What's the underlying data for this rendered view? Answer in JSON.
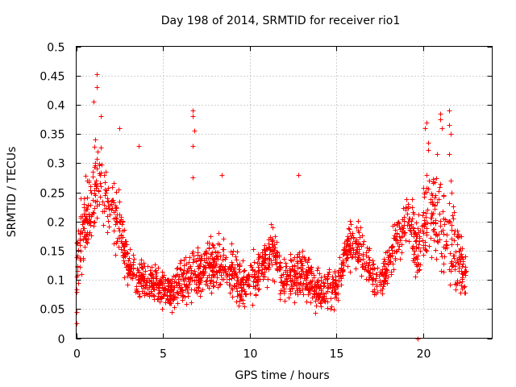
{
  "chart_data": {
    "type": "scatter",
    "title": "Day 198 of 2014, SRMTID for receiver rio1",
    "xlabel": "GPS time / hours",
    "ylabel": "SRMTID / TECUs",
    "xlim": [
      0,
      24
    ],
    "ylim": [
      0,
      0.5
    ],
    "x_ticks": [
      0,
      5,
      10,
      15,
      20
    ],
    "x_tick_labels": [
      "0",
      "5",
      "10",
      "15",
      "20"
    ],
    "y_ticks": [
      0,
      0.05,
      0.1,
      0.15,
      0.2,
      0.25,
      0.3,
      0.35,
      0.4,
      0.45,
      0.5
    ],
    "y_tick_labels": [
      "0",
      "0.05",
      "0.1",
      "0.15",
      "0.2",
      "0.25",
      "0.3",
      "0.35",
      "0.4",
      "0.45",
      "0.5"
    ],
    "grid": true,
    "marker": "+",
    "color": "#ff0000",
    "series": [
      {
        "name": "SRMTID",
        "envelope": [
          {
            "x": 0.0,
            "low": 0.02,
            "high": 0.2
          },
          {
            "x": 0.2,
            "low": 0.1,
            "high": 0.23
          },
          {
            "x": 0.5,
            "low": 0.12,
            "high": 0.28
          },
          {
            "x": 1.0,
            "low": 0.15,
            "high": 0.33
          },
          {
            "x": 1.3,
            "low": 0.16,
            "high": 0.37
          },
          {
            "x": 1.8,
            "low": 0.15,
            "high": 0.29
          },
          {
            "x": 2.5,
            "low": 0.12,
            "high": 0.26
          },
          {
            "x": 3.0,
            "low": 0.08,
            "high": 0.17
          },
          {
            "x": 3.5,
            "low": 0.06,
            "high": 0.14
          },
          {
            "x": 4.5,
            "low": 0.05,
            "high": 0.14
          },
          {
            "x": 5.5,
            "low": 0.04,
            "high": 0.12
          },
          {
            "x": 6.5,
            "low": 0.05,
            "high": 0.16
          },
          {
            "x": 7.5,
            "low": 0.07,
            "high": 0.17
          },
          {
            "x": 8.5,
            "low": 0.07,
            "high": 0.19
          },
          {
            "x": 9.5,
            "low": 0.04,
            "high": 0.15
          },
          {
            "x": 10.5,
            "low": 0.06,
            "high": 0.16
          },
          {
            "x": 11.3,
            "low": 0.1,
            "high": 0.2
          },
          {
            "x": 12.0,
            "low": 0.05,
            "high": 0.14
          },
          {
            "x": 13.0,
            "low": 0.06,
            "high": 0.17
          },
          {
            "x": 14.0,
            "low": 0.04,
            "high": 0.12
          },
          {
            "x": 15.0,
            "low": 0.05,
            "high": 0.13
          },
          {
            "x": 15.8,
            "low": 0.12,
            "high": 0.22
          },
          {
            "x": 16.5,
            "low": 0.1,
            "high": 0.19
          },
          {
            "x": 17.5,
            "low": 0.05,
            "high": 0.14
          },
          {
            "x": 18.5,
            "low": 0.12,
            "high": 0.22
          },
          {
            "x": 19.2,
            "low": 0.15,
            "high": 0.27
          },
          {
            "x": 19.6,
            "low": 0.09,
            "high": 0.21
          },
          {
            "x": 20.3,
            "low": 0.12,
            "high": 0.33
          },
          {
            "x": 21.0,
            "low": 0.1,
            "high": 0.3
          },
          {
            "x": 21.8,
            "low": 0.07,
            "high": 0.25
          },
          {
            "x": 22.5,
            "low": 0.05,
            "high": 0.15
          }
        ],
        "outliers": [
          {
            "x": 0.0,
            "y": 0.025
          },
          {
            "x": 0.0,
            "y": 0.045
          },
          {
            "x": 1.0,
            "y": 0.405
          },
          {
            "x": 1.2,
            "y": 0.43
          },
          {
            "x": 1.2,
            "y": 0.452
          },
          {
            "x": 1.4,
            "y": 0.38
          },
          {
            "x": 2.5,
            "y": 0.36
          },
          {
            "x": 3.6,
            "y": 0.33
          },
          {
            "x": 6.7,
            "y": 0.39
          },
          {
            "x": 6.7,
            "y": 0.38
          },
          {
            "x": 6.7,
            "y": 0.33
          },
          {
            "x": 6.8,
            "y": 0.355
          },
          {
            "x": 6.7,
            "y": 0.275
          },
          {
            "x": 8.4,
            "y": 0.28
          },
          {
            "x": 12.8,
            "y": 0.28
          },
          {
            "x": 20.1,
            "y": 0.36
          },
          {
            "x": 20.2,
            "y": 0.37
          },
          {
            "x": 20.3,
            "y": 0.335
          },
          {
            "x": 21.0,
            "y": 0.385
          },
          {
            "x": 21.0,
            "y": 0.375
          },
          {
            "x": 21.1,
            "y": 0.36
          },
          {
            "x": 21.5,
            "y": 0.39
          },
          {
            "x": 21.5,
            "y": 0.365
          },
          {
            "x": 21.6,
            "y": 0.35
          },
          {
            "x": 21.5,
            "y": 0.315
          },
          {
            "x": 20.8,
            "y": 0.315
          },
          {
            "x": 21.6,
            "y": 0.27
          },
          {
            "x": 19.7,
            "y": 0.0
          }
        ]
      }
    ]
  }
}
